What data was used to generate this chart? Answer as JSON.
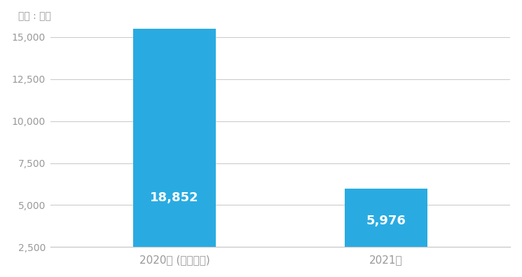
{
  "categories": [
    "2020년 (추경포함)",
    "2021년"
  ],
  "values": [
    18852,
    5976
  ],
  "bar_colors": [
    "#29ABE2",
    "#29ABE2"
  ],
  "bar_labels": [
    "18,852",
    "5,976"
  ],
  "label_color": "#ffffff",
  "unit_label": "단위 : 억원",
  "ylim_min": 2500,
  "ylim_max": 15500,
  "yticks": [
    2500,
    5000,
    7500,
    10000,
    12500,
    15000
  ],
  "ytick_labels": [
    "2,500",
    "5,000",
    "7,500",
    "10,000",
    "12,500",
    "15,000"
  ],
  "background_color": "#ffffff",
  "grid_color": "#cccccc",
  "tick_color": "#999999",
  "bar_label_fontsize": 13,
  "unit_fontsize": 10,
  "bar_width": 0.18,
  "x_positions": [
    0.27,
    0.73
  ]
}
